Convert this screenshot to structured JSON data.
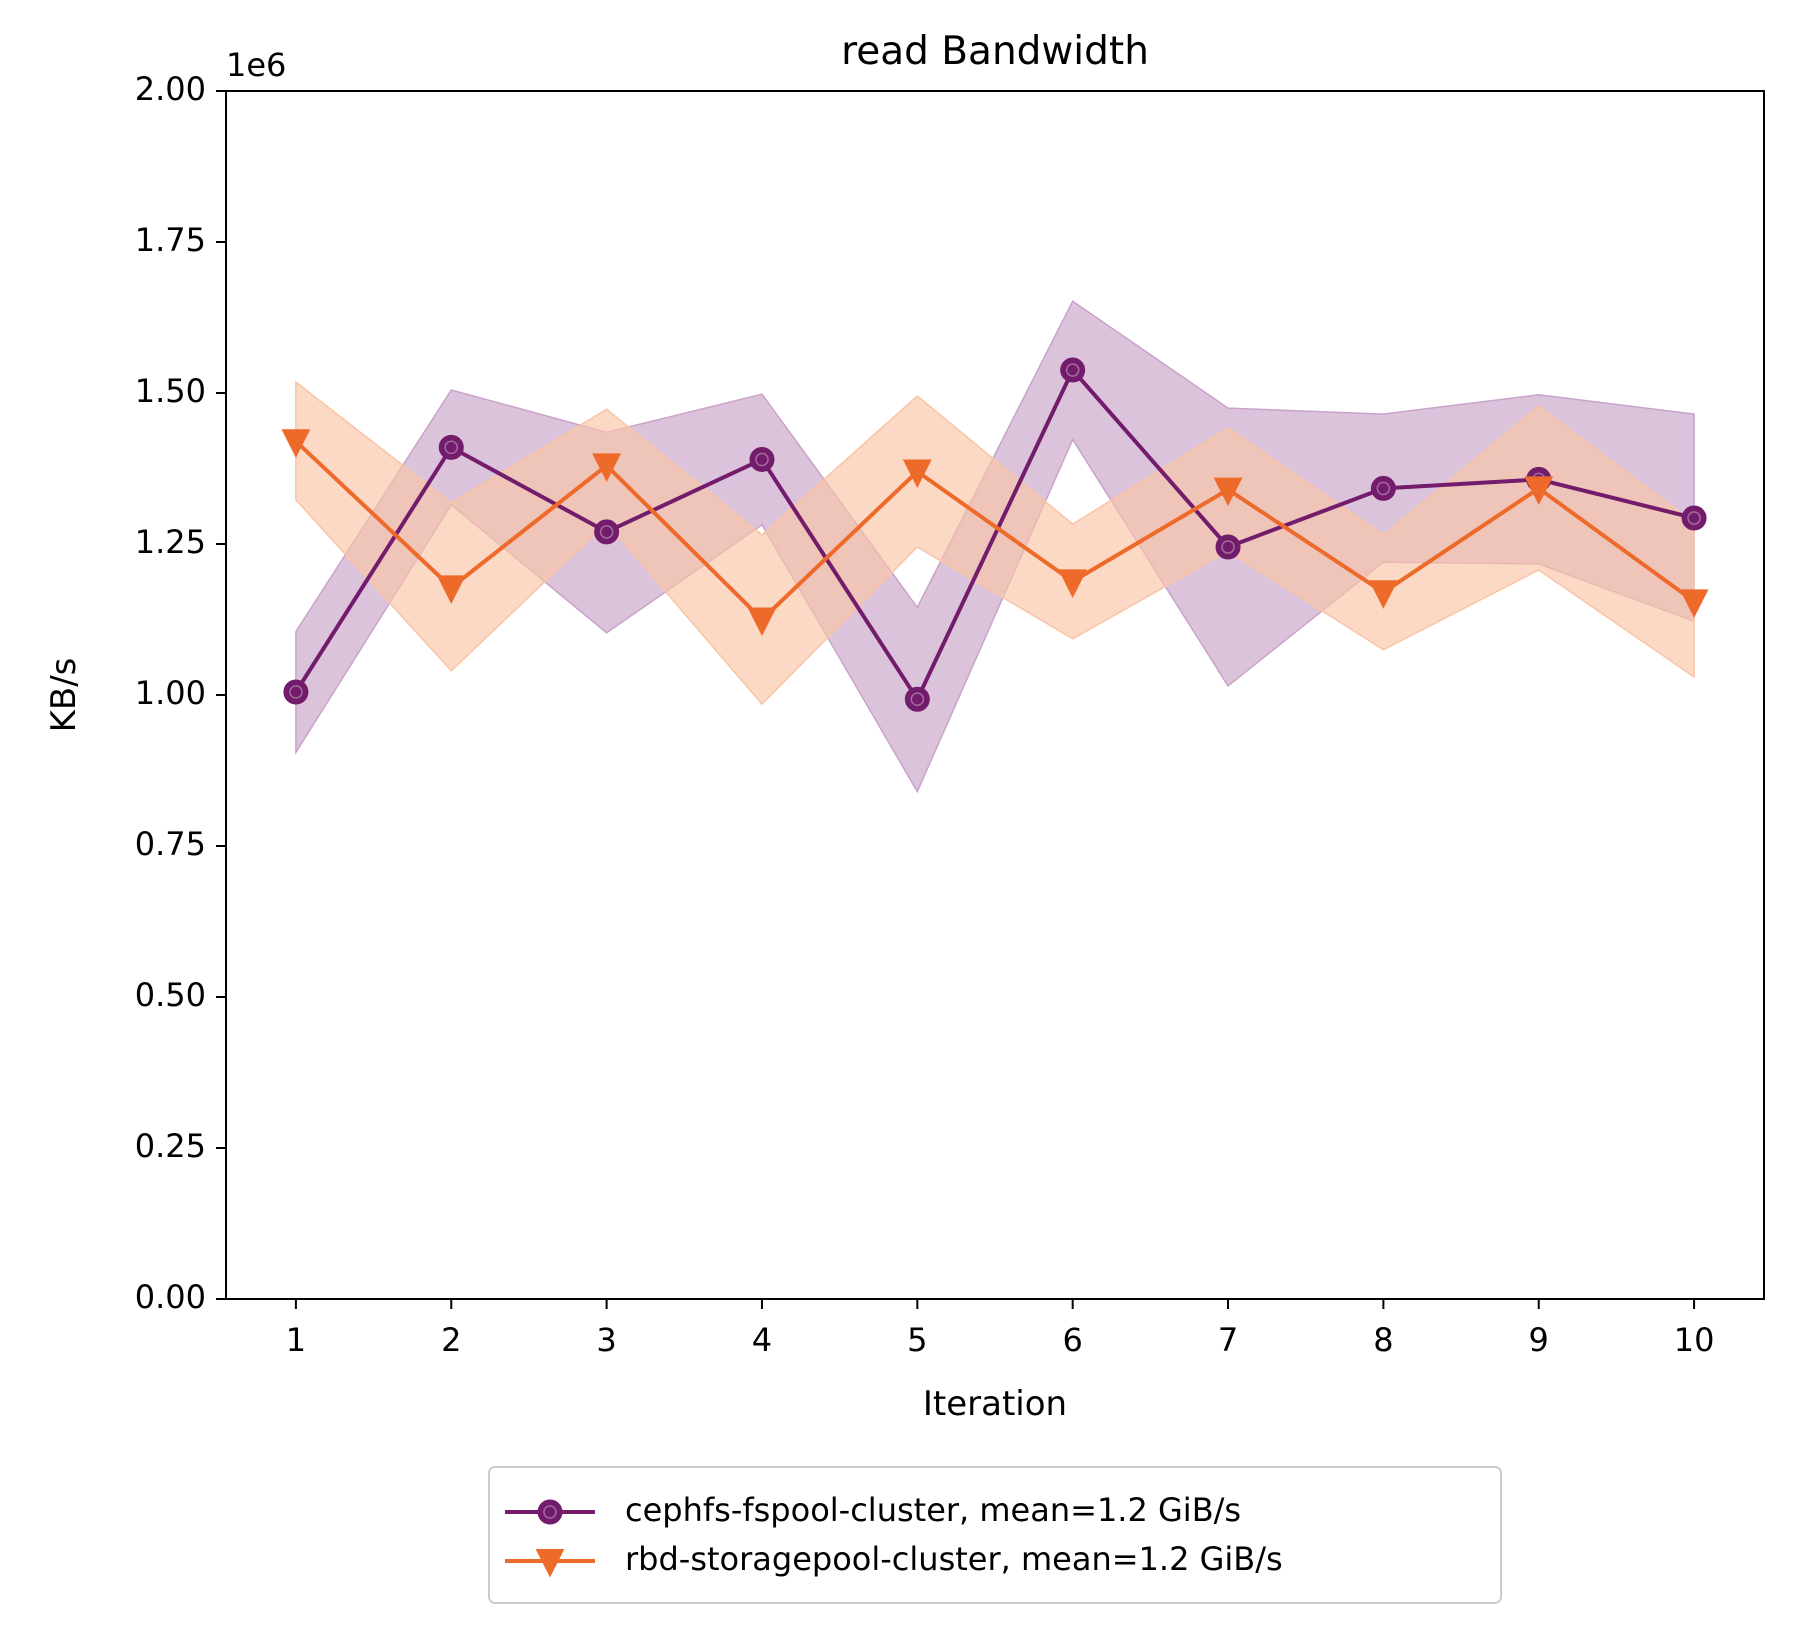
{
  "chart_data": {
    "type": "line",
    "title": "read Bandwidth",
    "xlabel": "Iteration",
    "ylabel": "KB/s",
    "y_offset_label": "1e6",
    "xlim": [
      0.55,
      10.45
    ],
    "ylim": [
      0,
      2000000
    ],
    "x_ticks": [
      1,
      2,
      3,
      4,
      5,
      6,
      7,
      8,
      9,
      10
    ],
    "x_tick_labels": [
      "1",
      "2",
      "3",
      "4",
      "5",
      "6",
      "7",
      "8",
      "9",
      "10"
    ],
    "y_ticks": [
      0,
      250000,
      500000,
      750000,
      1000000,
      1250000,
      1500000,
      1750000,
      2000000
    ],
    "y_tick_labels": [
      "0.00",
      "0.25",
      "0.50",
      "0.75",
      "1.00",
      "1.25",
      "1.50",
      "1.75",
      "2.00"
    ],
    "grid": false,
    "legend_position": "below",
    "x": [
      1,
      2,
      3,
      4,
      5,
      6,
      7,
      8,
      9,
      10
    ],
    "series": [
      {
        "name": "cephfs-fspool-cluster, mean=1.2 GiB/s",
        "color": "#731c6b",
        "band_color": "#c9a3c9",
        "marker": "circle",
        "values": [
          1005000,
          1410000,
          1270000,
          1390000,
          993000,
          1538000,
          1245000,
          1342000,
          1357000,
          1293000
        ],
        "upper": [
          1105000,
          1505000,
          1435000,
          1498000,
          1145000,
          1652000,
          1475000,
          1465000,
          1497000,
          1465000
        ],
        "lower": [
          905000,
          1315000,
          1103000,
          1282000,
          840000,
          1423000,
          1015000,
          1220000,
          1217000,
          1122000
        ]
      },
      {
        "name": "rbd-storagepool-cluster, mean=1.2 GiB/s",
        "color": "#ee6a2a",
        "band_color": "#f9c4a6",
        "marker": "triangle-down",
        "values": [
          1420000,
          1178000,
          1380000,
          1125000,
          1370000,
          1188000,
          1340000,
          1170000,
          1342000,
          1155000
        ],
        "upper": [
          1518000,
          1318000,
          1473000,
          1265000,
          1495000,
          1283000,
          1442000,
          1265000,
          1478000,
          1285000
        ],
        "lower": [
          1323000,
          1040000,
          1285000,
          985000,
          1245000,
          1093000,
          1238000,
          1075000,
          1207000,
          1030000
        ]
      }
    ]
  }
}
